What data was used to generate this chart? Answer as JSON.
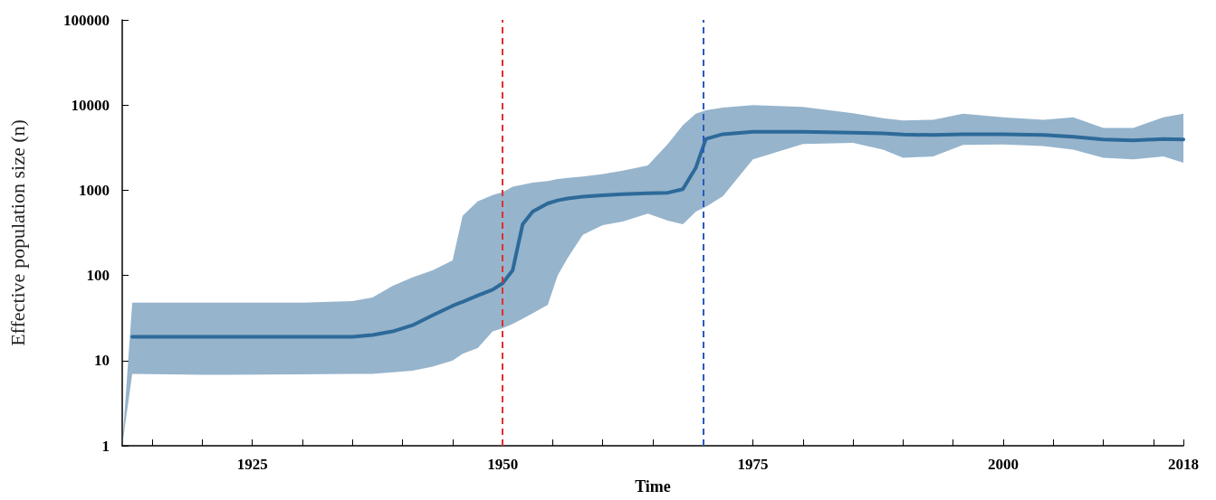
{
  "chart_data": {
    "type": "line",
    "xlabel": "Time",
    "ylabel": "Effective population size (n)",
    "log": true,
    "marker": "none",
    "grid": false,
    "xlim": [
      1912,
      2018
    ],
    "ylim": [
      1,
      100000
    ],
    "yticks": [
      1,
      10,
      100,
      1000,
      10000,
      100000
    ],
    "xticks": [
      {
        "value": 1915,
        "label": null
      },
      {
        "value": 1920,
        "label": null
      },
      1925,
      {
        "value": 1930,
        "label": null
      },
      {
        "value": 1935,
        "label": null
      },
      {
        "value": 1940,
        "label": null
      },
      {
        "value": 1945,
        "label": null
      },
      1950,
      {
        "value": 1955,
        "label": null
      },
      {
        "value": 1960,
        "label": null
      },
      {
        "value": 1965,
        "label": null
      },
      {
        "value": 1970,
        "label": null
      },
      1975,
      {
        "value": 1980,
        "label": null
      },
      {
        "value": 1985,
        "label": null
      },
      {
        "value": 1990,
        "label": null
      },
      {
        "value": 1995,
        "label": null
      },
      2000,
      {
        "value": 2005,
        "label": null
      },
      {
        "value": 2010,
        "label": null
      },
      {
        "value": 2015,
        "label": null
      },
      2018
    ],
    "x": [
      1912,
      1913,
      1920,
      1930,
      1935,
      1937,
      1939,
      1941,
      1943,
      1945,
      1946,
      1947.5,
      1949,
      1950,
      1951,
      1952,
      1953,
      1954.5,
      1955.5,
      1956.5,
      1958,
      1960,
      1962,
      1964.5,
      1966.5,
      1968,
      1969.3,
      1970.3,
      1972,
      1975,
      1980,
      1985,
      1988,
      1990,
      1993,
      1996,
      2000,
      2004,
      2007,
      2010,
      2013,
      2016,
      2018
    ],
    "series": [
      {
        "color": "#2d6a99",
        "values": [
          null,
          19,
          19,
          19,
          19,
          20,
          22,
          26,
          34,
          44,
          49,
          58,
          68,
          81,
          115,
          400,
          560,
          700,
          760,
          800,
          840,
          870,
          900,
          920,
          935,
          1030,
          1840,
          4000,
          4550,
          4850,
          4850,
          4750,
          4650,
          4500,
          4450,
          4550,
          4550,
          4450,
          4250,
          3950,
          3850,
          4000,
          3950
        ],
        "lower": [
          1,
          7,
          6.8,
          6.9,
          7,
          7,
          7.3,
          7.6,
          8.5,
          10,
          12,
          14,
          22,
          24,
          27,
          31,
          36,
          45,
          100,
          160,
          300,
          390,
          430,
          530,
          440,
          400,
          560,
          640,
          850,
          2300,
          3500,
          3600,
          3000,
          2400,
          2500,
          3400,
          3450,
          3300,
          3000,
          2400,
          2300,
          2500,
          2100
        ],
        "upper": [
          1,
          48,
          48,
          48,
          50,
          55,
          75,
          95,
          115,
          150,
          500,
          740,
          880,
          950,
          1100,
          1160,
          1230,
          1280,
          1350,
          1400,
          1450,
          1550,
          1700,
          1950,
          3500,
          5800,
          7900,
          8700,
          9350,
          10000,
          9500,
          8000,
          7000,
          6600,
          6700,
          7900,
          7200,
          6700,
          7200,
          5400,
          5400,
          7200,
          7900
        ]
      }
    ],
    "ref_lines": [
      {
        "axis": "x",
        "value": 1950,
        "color": "#e03030",
        "line_style": "dashed"
      },
      {
        "axis": "x",
        "value": 1970,
        "color": "#2a5bbf",
        "line_style": "dashed"
      }
    ]
  }
}
